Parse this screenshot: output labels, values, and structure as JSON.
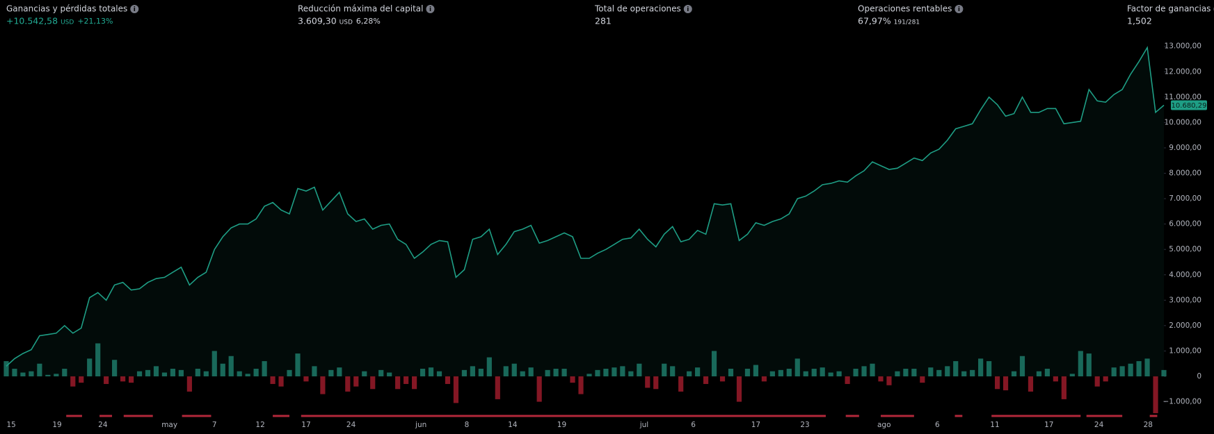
{
  "header": {
    "stats": [
      {
        "label": "Ganancias y pérdidas totales",
        "value": "+10.542,58",
        "unit": "USD",
        "extra": "+21,13%",
        "color": "#22ab94"
      },
      {
        "label": "Reducción máxima del capital",
        "value": "3.609,30",
        "unit": "USD",
        "extra": "6,28%",
        "color": "#d1d4dc"
      },
      {
        "label": "Total de operaciones",
        "value": "281",
        "color": "#d1d4dc"
      },
      {
        "label": "Operaciones rentables",
        "value": "67,97%",
        "extra": "191/281",
        "color": "#d1d4dc"
      },
      {
        "label": "Factor de ganancias",
        "value": "1,502",
        "color": "#d1d4dc"
      }
    ]
  },
  "chart_data": {
    "type": "line",
    "equity": {
      "color": "#1e9e85",
      "values": [
        400,
        700,
        900,
        1050,
        1600,
        1650,
        1700,
        2000,
        1700,
        1900,
        3100,
        3300,
        3000,
        3600,
        3700,
        3400,
        3450,
        3700,
        3850,
        3900,
        4100,
        4300,
        3600,
        3900,
        4100,
        5000,
        5500,
        5850,
        6000,
        6000,
        6200,
        6700,
        6850,
        6550,
        6400,
        7400,
        7300,
        7450,
        6550,
        6900,
        7250,
        6400,
        6100,
        6200,
        5800,
        5950,
        6000,
        5400,
        5200,
        4650,
        4900,
        5200,
        5350,
        5300,
        3900,
        4200,
        5400,
        5500,
        5800,
        4800,
        5200,
        5700,
        5800,
        5950,
        5250,
        5350,
        5500,
        5650,
        5500,
        4650,
        4650,
        4850,
        5000,
        5200,
        5400,
        5450,
        5800,
        5400,
        5100,
        5600,
        5900,
        5300,
        5400,
        5750,
        5600,
        6800,
        6750,
        6800,
        5350,
        5600,
        6050,
        5950,
        6100,
        6200,
        6400,
        7000,
        7100,
        7300,
        7550,
        7600,
        7700,
        7650,
        7900,
        8100,
        8450,
        8300,
        8150,
        8200,
        8400,
        8600,
        8500,
        8800,
        8950,
        9300,
        9750,
        9850,
        9950,
        10500,
        11000,
        10700,
        10250,
        10350,
        11000,
        10400,
        10400,
        10550,
        10550,
        9950,
        10000,
        10050,
        11300,
        10850,
        10800,
        11100,
        11300,
        11900,
        12400,
        12950,
        10400,
        10680.29
      ]
    },
    "last_value_label": "10.680,29",
    "pnl_bars": {
      "up_color": "#1f7f6e",
      "down_color": "#a51d2d",
      "values": [
        600,
        300,
        150,
        200,
        500,
        60,
        100,
        300,
        -400,
        -250,
        700,
        1300,
        -300,
        650,
        -200,
        -250,
        200,
        250,
        400,
        150,
        300,
        250,
        -600,
        300,
        200,
        1000,
        500,
        800,
        200,
        100,
        300,
        600,
        -300,
        -400,
        250,
        900,
        -200,
        400,
        -700,
        250,
        350,
        -600,
        -400,
        200,
        -500,
        250,
        150,
        -500,
        -300,
        -500,
        300,
        350,
        200,
        -300,
        -1050,
        250,
        400,
        300,
        750,
        -900,
        400,
        500,
        200,
        350,
        -1000,
        250,
        300,
        300,
        -250,
        -700,
        100,
        250,
        300,
        350,
        400,
        200,
        500,
        -450,
        -500,
        500,
        400,
        -600,
        200,
        350,
        -300,
        1000,
        -200,
        300,
        -1000,
        300,
        450,
        -200,
        200,
        250,
        300,
        700,
        200,
        300,
        350,
        150,
        200,
        -300,
        300,
        400,
        500,
        -200,
        -350,
        200,
        300,
        300,
        -250,
        350,
        250,
        400,
        600,
        200,
        250,
        700,
        600,
        -500,
        -550,
        200,
        800,
        -600,
        200,
        300,
        -200,
        -900,
        100,
        1000,
        900,
        -400,
        -200,
        350,
        400,
        500,
        600,
        700,
        -1450,
        250
      ]
    },
    "drawdown_color": "#b2283a",
    "drawdown_periods": [
      [
        7.2,
        9.1
      ],
      [
        11.2,
        12.7
      ],
      [
        14.1,
        17.6
      ],
      [
        21.1,
        24.6
      ],
      [
        32,
        34
      ],
      [
        35.4,
        98.4
      ],
      [
        100.8,
        102.4
      ],
      [
        105,
        109
      ],
      [
        113.9,
        114.8
      ],
      [
        118.3,
        129
      ],
      [
        129.7,
        134
      ],
      [
        137.3,
        138.2
      ]
    ],
    "xlim": [
      0,
      139
    ],
    "xticks": [
      {
        "value": 0.6,
        "label": "15"
      },
      {
        "value": 6.1,
        "label": "19"
      },
      {
        "value": 11.6,
        "label": "24"
      },
      {
        "value": 19.6,
        "label": "may"
      },
      {
        "value": 25,
        "label": "7"
      },
      {
        "value": 30.5,
        "label": "12"
      },
      {
        "value": 36,
        "label": "17"
      },
      {
        "value": 41.4,
        "label": "24"
      },
      {
        "value": 49.8,
        "label": "jun"
      },
      {
        "value": 55.3,
        "label": "8"
      },
      {
        "value": 60.8,
        "label": "14"
      },
      {
        "value": 66.7,
        "label": "19"
      },
      {
        "value": 76.6,
        "label": "jul"
      },
      {
        "value": 82.5,
        "label": "6"
      },
      {
        "value": 90,
        "label": "17"
      },
      {
        "value": 95.9,
        "label": "23"
      },
      {
        "value": 105.4,
        "label": "ago"
      },
      {
        "value": 111.8,
        "label": "6"
      },
      {
        "value": 118.7,
        "label": "11"
      },
      {
        "value": 125.2,
        "label": "17"
      },
      {
        "value": 131.2,
        "label": "24"
      },
      {
        "value": 137.1,
        "label": "28"
      }
    ],
    "ylim": [
      -1500,
      13200
    ],
    "yticks": [
      {
        "value": -1000,
        "label": "−1.000,00"
      },
      0,
      {
        "value": 1000,
        "label": "1.000,00"
      },
      {
        "value": 2000,
        "label": "2.000,00"
      },
      {
        "value": 3000,
        "label": "3.000,00"
      },
      {
        "value": 4000,
        "label": "4.000,00"
      },
      {
        "value": 5000,
        "label": "5.000,00"
      },
      {
        "value": 6000,
        "label": "6.000,00"
      },
      {
        "value": 7000,
        "label": "7.000,00"
      },
      {
        "value": 8000,
        "label": "8.000,00"
      },
      {
        "value": 9000,
        "label": "9.000,00"
      },
      {
        "value": 10000,
        "label": "10.000,00"
      },
      {
        "value": 11000,
        "label": "11.000,00"
      },
      {
        "value": 12000,
        "label": "12.000,00"
      },
      {
        "value": 13000,
        "label": "13.000,00"
      }
    ]
  }
}
